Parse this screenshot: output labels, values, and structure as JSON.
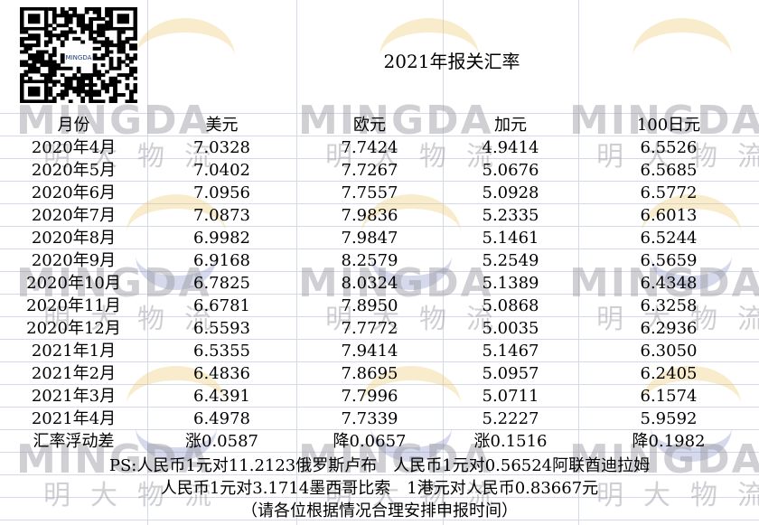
{
  "title": "2021年报关汇率",
  "watermark": {
    "latin": "MINGDA",
    "chinese": "明大物流"
  },
  "qr_code": {
    "logo_text": "MINGDA"
  },
  "table": {
    "headers": [
      "月份",
      "美元",
      "欧元",
      "加元",
      "100日元"
    ],
    "rows": [
      [
        "2020年4月",
        "7.0328",
        "7.7424",
        "4.9414",
        "6.5526"
      ],
      [
        "2020年5月",
        "7.0402",
        "7.7267",
        "5.0676",
        "6.5685"
      ],
      [
        "2020年6月",
        "7.0956",
        "7.7557",
        "5.0928",
        "6.5772"
      ],
      [
        "2020年7月",
        "7.0873",
        "7.9836",
        "5.2335",
        "6.6013"
      ],
      [
        "2020年8月",
        "6.9982",
        "7.9847",
        "5.1461",
        "6.5244"
      ],
      [
        "2020年9月",
        "6.9168",
        "8.2579",
        "5.2549",
        "6.5659"
      ],
      [
        "2020年10月",
        "6.7825",
        "8.0324",
        "5.1389",
        "6.4348"
      ],
      [
        "2020年11月",
        "6.6781",
        "7.8950",
        "5.0868",
        "6.3258"
      ],
      [
        "2020年12月",
        "6.5593",
        "7.7772",
        "5.0035",
        "6.2936"
      ],
      [
        "2021年1月",
        "6.5355",
        "7.9414",
        "5.1467",
        "6.3050"
      ],
      [
        "2021年2月",
        "6.4836",
        "7.8695",
        "5.0957",
        "6.2405"
      ],
      [
        "2021年3月",
        "6.4391",
        "7.7996",
        "5.0711",
        "6.1574"
      ],
      [
        "2021年4月",
        "6.4978",
        "7.7339",
        "5.2227",
        "5.9592"
      ]
    ],
    "diff_row": [
      "汇率浮动差",
      "涨0.0587",
      "降0.0657",
      "涨0.1516",
      "降0.1982"
    ]
  },
  "notes": {
    "line1": "PS:人民币1元对11.2123俄罗斯卢布　人民币1元对0.56524阿联酋迪拉姆",
    "line2": "人民币1元对3.1714墨西哥比索　1港元对人民币0.83667元",
    "line3": "（请各位根据情况合理安排申报时间）"
  }
}
